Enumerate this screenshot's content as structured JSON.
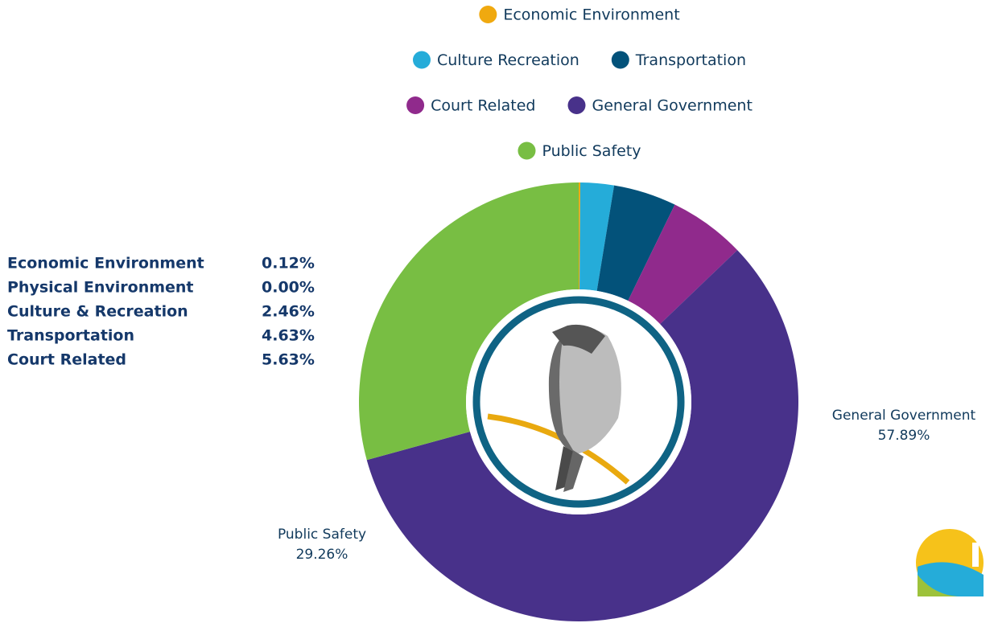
{
  "chart_data": {
    "type": "donut",
    "categories": [
      "Economic Environment",
      "Culture Recreation",
      "Transportation",
      "Court Related",
      "General Government",
      "Public Safety"
    ],
    "values": [
      0.12,
      2.46,
      4.63,
      5.63,
      57.89,
      29.26
    ],
    "value_labels": [
      "0.12%",
      "2.46%",
      "4.63%",
      "5.63%",
      "57.89%",
      "29.26%"
    ],
    "colors": [
      "#f0a90f",
      "#25acd9",
      "#03527a",
      "#902a8c",
      "#48318a",
      "#78be43"
    ],
    "table": {
      "rows": [
        [
          "Economic Environment",
          "0.12%"
        ],
        [
          "Physical Environment",
          "0.00%"
        ],
        [
          "Culture & Recreation",
          "2.46%"
        ],
        [
          "Transportation",
          "4.63%"
        ],
        [
          "Court Related",
          "5.63%"
        ]
      ]
    }
  }
}
